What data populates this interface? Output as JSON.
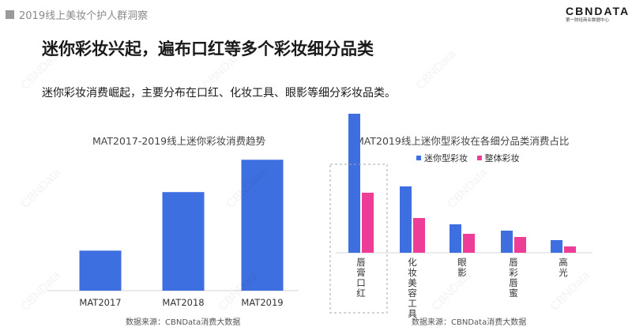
{
  "header": {
    "report_title": "2019线上美妆个护人群洞察",
    "logo_main": "CBNDATA",
    "logo_sub": "第一财经商业数据中心"
  },
  "slide": {
    "title": "迷你彩妆兴起，遍布口红等多个彩妆细分品类",
    "subtitle": "迷你彩妆消费崛起，主要分布在口红、化妆工具、眼影等细分彩妆品类。"
  },
  "watermark": "CBNData",
  "colors": {
    "blue": "#3e6fe0",
    "pink": "#ee3d96",
    "axis": "#d6d6d6",
    "highlight_box": "#aaaaaa"
  },
  "chart_data": [
    {
      "type": "bar",
      "title": "MAT2017-2019线上迷你彩妆消费趋势",
      "categories": [
        "MAT2017",
        "MAT2018",
        "MAT2019"
      ],
      "values": [
        26,
        64,
        85
      ],
      "ylim": [
        0,
        100
      ],
      "xlabel": "",
      "ylabel": "",
      "grid": false,
      "source": "数据来源：CBNData消费大数据"
    },
    {
      "type": "bar",
      "title": "MAT2019线上迷你型彩妆在各细分品类消费占比",
      "categories": [
        "唇膏口红",
        "化妆美容工具",
        "眼影",
        "唇彩唇蜜",
        "高光"
      ],
      "series": [
        {
          "name": "迷你型彩妆",
          "values": [
            44,
            21,
            9,
            7,
            4
          ]
        },
        {
          "name": "整体彩妆",
          "values": [
            19,
            11,
            6,
            5,
            2
          ]
        }
      ],
      "ylim": [
        0,
        50
      ],
      "legend": "top",
      "highlight": "唇膏口红",
      "grid": false,
      "source": "数据来源：CBNData消费大数据"
    }
  ]
}
